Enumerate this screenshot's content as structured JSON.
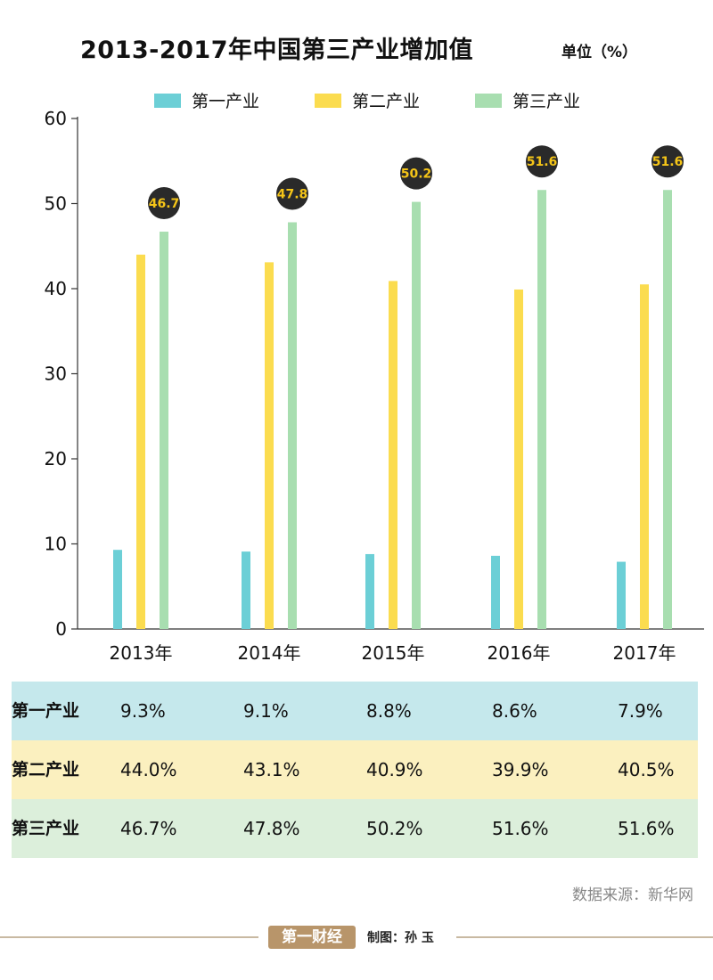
{
  "header": {
    "title": "2013-2017年中国第三产业增加值",
    "unit": "单位（%）"
  },
  "legend": [
    {
      "label": "第一产业",
      "color": "#6ccfd6"
    },
    {
      "label": "第二产业",
      "color": "#fbdc4f"
    },
    {
      "label": "第三产业",
      "color": "#a8deb0"
    }
  ],
  "chart_data": {
    "type": "bar",
    "categories": [
      "2013年",
      "2014年",
      "2015年",
      "2016年",
      "2017年"
    ],
    "series": [
      {
        "name": "第一产业",
        "values": [
          9.3,
          9.1,
          8.8,
          8.6,
          7.9
        ],
        "color": "#6ccfd6"
      },
      {
        "name": "第二产业",
        "values": [
          44.0,
          43.1,
          40.9,
          39.9,
          40.5
        ],
        "color": "#fbdc4f"
      },
      {
        "name": "第三产业",
        "values": [
          46.7,
          47.8,
          50.2,
          51.6,
          51.6
        ],
        "color": "#a8deb0"
      }
    ],
    "yticks": [
      0,
      10,
      20,
      30,
      40,
      50,
      60
    ],
    "ylim": [
      0,
      60
    ],
    "callouts": [
      "46.7",
      "47.8",
      "50.2",
      "51.6",
      "51.6"
    ],
    "callout_bg": "#2a2a2a",
    "callout_color": "#f5c518",
    "legend_position": "top"
  },
  "table": {
    "rows": [
      {
        "label": "第一产业",
        "bg": "#c5e8ec",
        "cells": [
          "9.3%",
          "9.1%",
          "8.8%",
          "8.6%",
          "7.9%"
        ]
      },
      {
        "label": "第二产业",
        "bg": "#fbf0bf",
        "cells": [
          "44.0%",
          "43.1%",
          "40.9%",
          "39.9%",
          "40.5%"
        ]
      },
      {
        "label": "第三产业",
        "bg": "#dcefdb",
        "cells": [
          "46.7%",
          "47.8%",
          "50.2%",
          "51.6%",
          "51.6%"
        ]
      }
    ]
  },
  "footer": {
    "source": "数据来源：新华网",
    "logo": "第一财经",
    "maker": "制图：孙  玉"
  }
}
